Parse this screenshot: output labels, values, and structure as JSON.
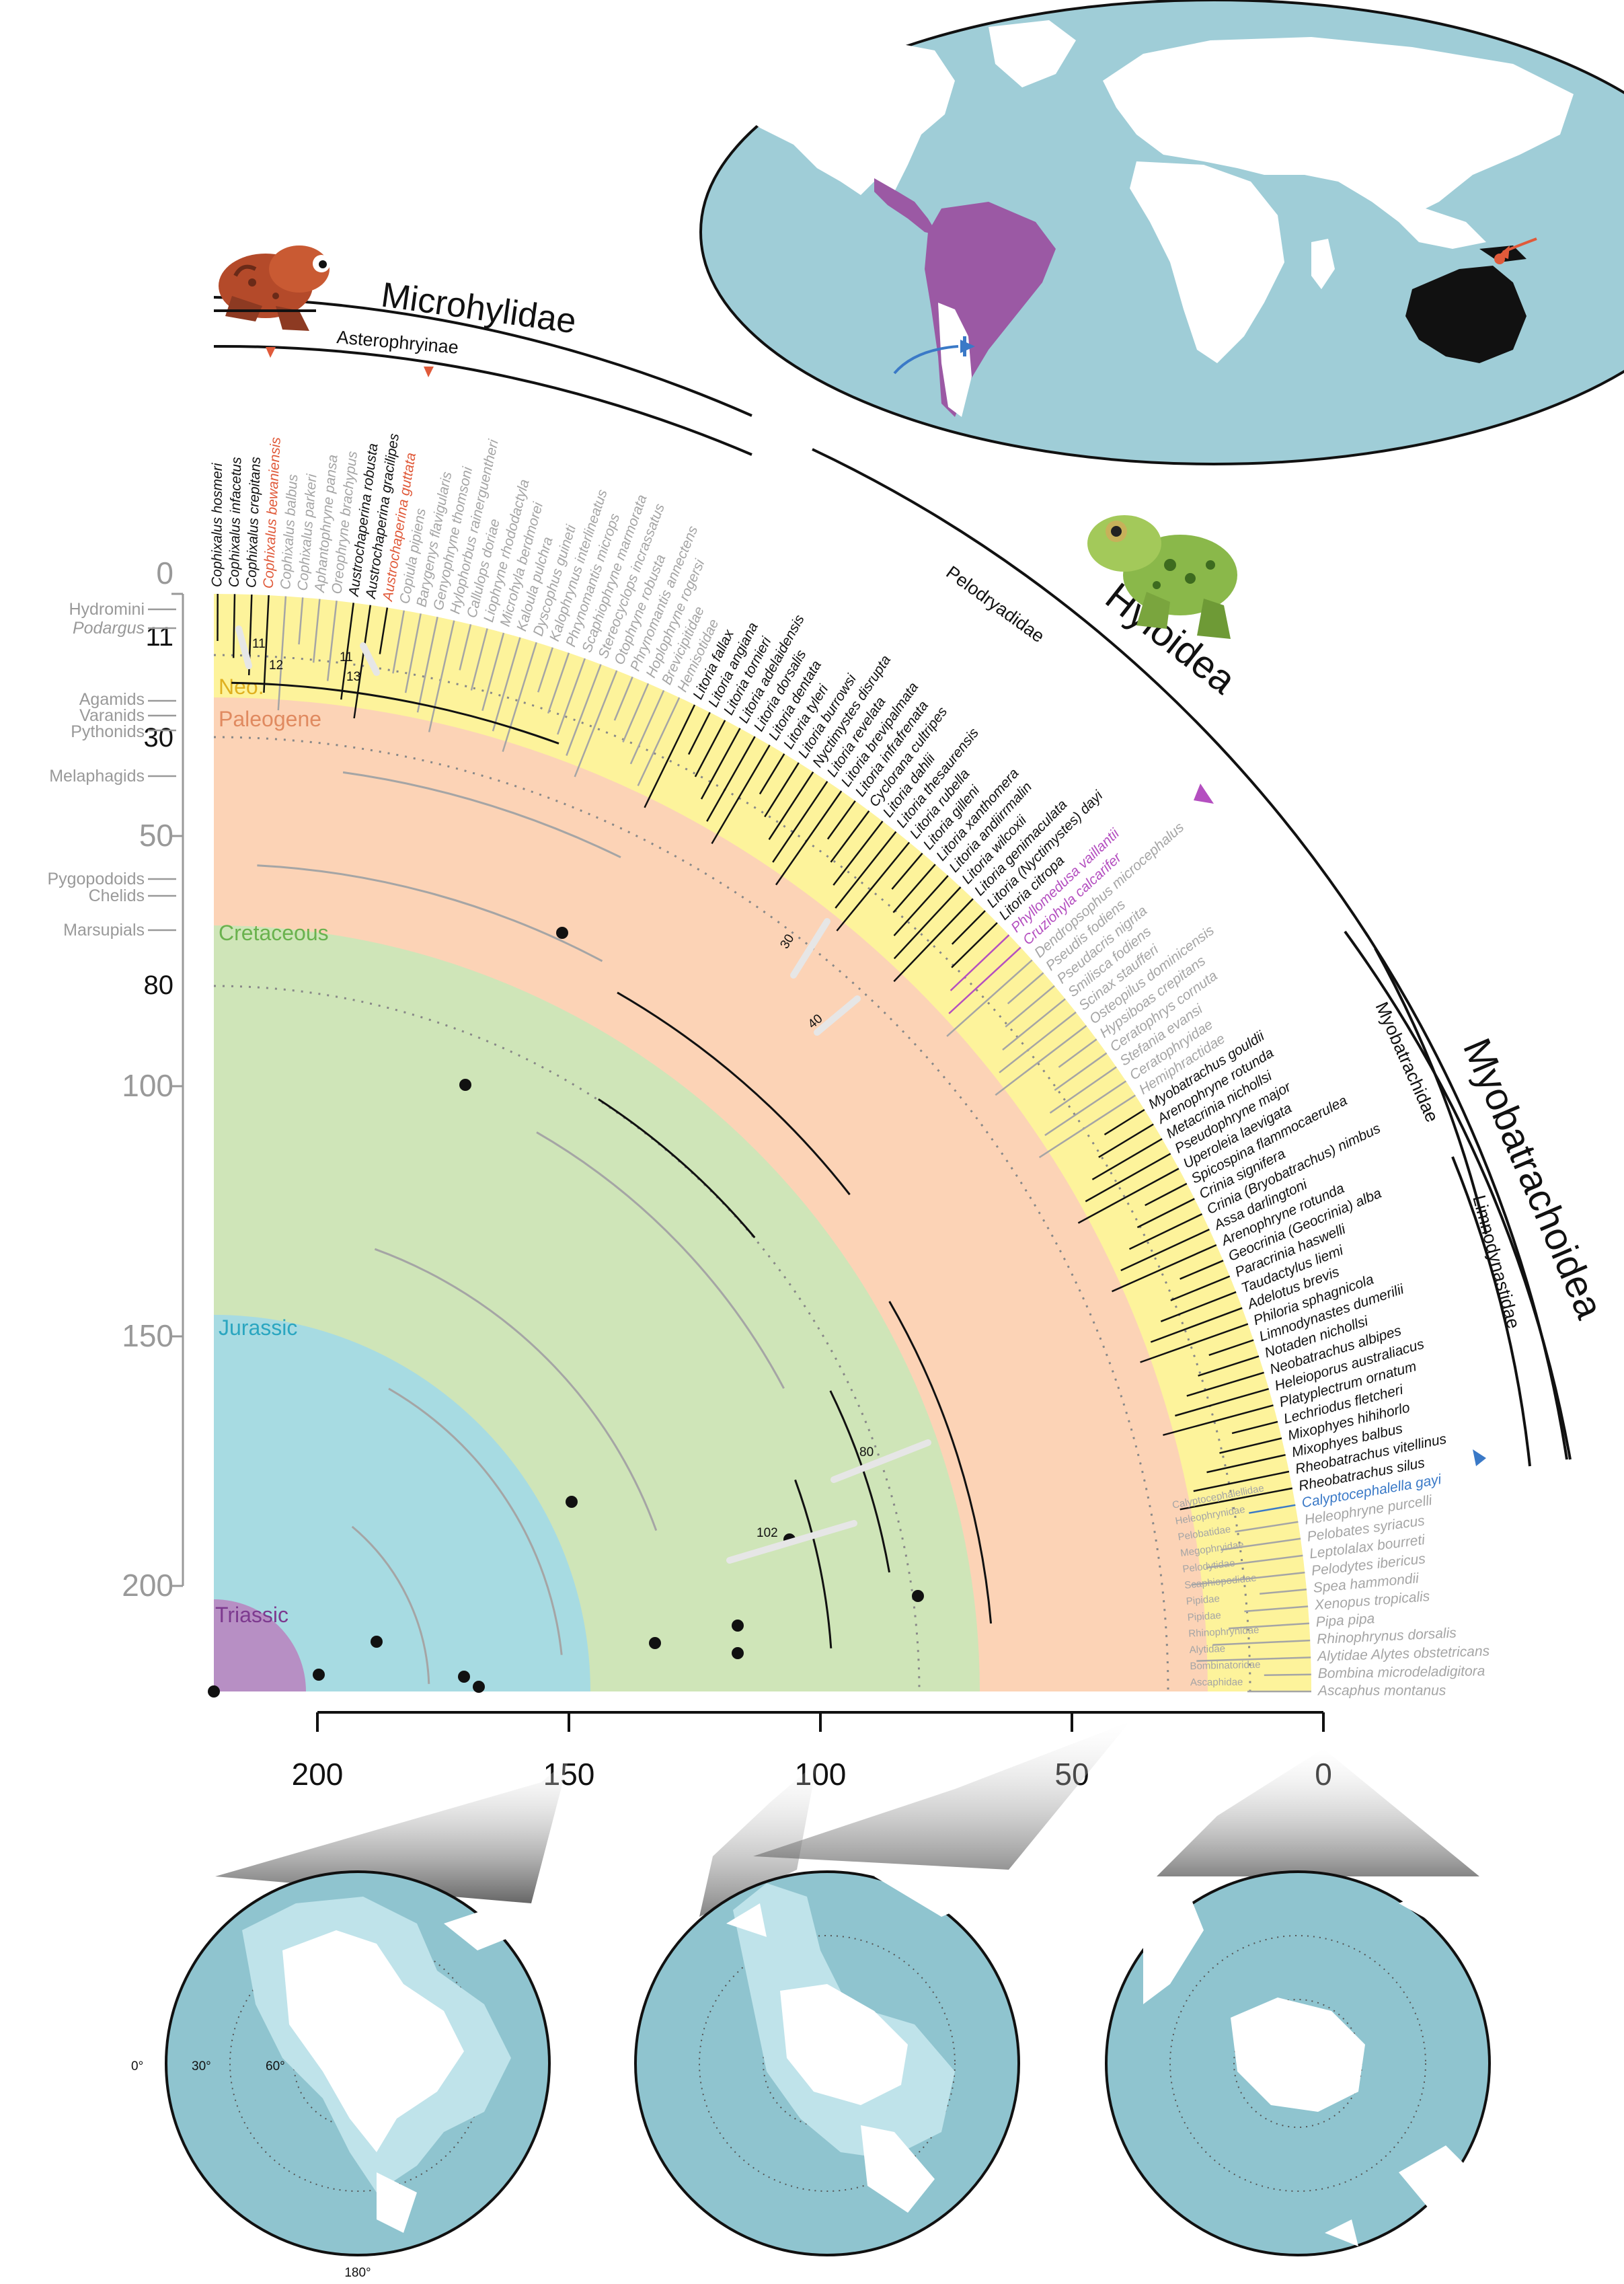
{
  "families": {
    "microhylidae": "Microhylidae",
    "asterophryinae": "Asterophryinae",
    "hyloidea": "Hyloidea",
    "pelodryadidae": "Pelodryadidae",
    "myobatrachoidea": "Myobatrachoidea",
    "myobatrachidae": "Myobatrachidae",
    "limnodynastidae": "Limnodynastidae"
  },
  "periods": {
    "neogene": "Neo.",
    "paleogene": "Paleogene",
    "cretaceous": "Cretaceous",
    "jurassic": "Jurassic",
    "triassic": "Triassic"
  },
  "radial_axis": {
    "ticks": [
      {
        "label": "0",
        "value": 0
      },
      {
        "label": "11",
        "value": 11
      },
      {
        "label": "30",
        "value": 30
      },
      {
        "label": "50",
        "value": 50
      },
      {
        "label": "80",
        "value": 80
      },
      {
        "label": "100",
        "value": 100
      },
      {
        "label": "150",
        "value": 150
      },
      {
        "label": "200",
        "value": 200
      }
    ],
    "events": [
      {
        "label": "Hydromini"
      },
      {
        "label": "Podargus"
      },
      {
        "label": "Agamids"
      },
      {
        "label": "Varanids"
      },
      {
        "label": "Pythonids"
      },
      {
        "label": "Melaphagids"
      },
      {
        "label": "Pygopodoids"
      },
      {
        "label": "Chelids"
      },
      {
        "label": "Marsupials"
      }
    ]
  },
  "bottom_axis": {
    "ticks": [
      "200",
      "150",
      "100",
      "50",
      "0"
    ]
  },
  "node_labels": {
    "n11a": "11",
    "n12": "12",
    "n11b": "11",
    "n13": "13",
    "n30": "30",
    "n40": "40",
    "n80": "80",
    "n102": "102"
  },
  "globe_labels": {
    "lon0": "0°",
    "lat30": "30°",
    "lat60": "60°",
    "lon180": "180°"
  },
  "tips": [
    {
      "name": "Cophixalus hosmeri",
      "style": "B"
    },
    {
      "name": "Cophixalus infacetus",
      "style": "B"
    },
    {
      "name": "Cophixalus crepitans",
      "style": "B"
    },
    {
      "name": "Cophixalus bewaniensis",
      "style": "R"
    },
    {
      "name": "Cophixalus balbus",
      "style": "G"
    },
    {
      "name": "Cophixalus parkeri",
      "style": "G"
    },
    {
      "name": "Aphantophryne pansa",
      "style": "G"
    },
    {
      "name": "Oreophryne brachypus",
      "style": "G"
    },
    {
      "name": "Austrochaperina robusta",
      "style": "B"
    },
    {
      "name": "Austrochaperina gracilipes",
      "style": "B"
    },
    {
      "name": "Austrochaperina guttata",
      "style": "R"
    },
    {
      "name": "Copiula pipiens",
      "style": "G"
    },
    {
      "name": "Barygenys flavigularis",
      "style": "G"
    },
    {
      "name": "Genyophryne thomsoni",
      "style": "G"
    },
    {
      "name": "Hylophorbus rainerguentheri",
      "style": "G"
    },
    {
      "name": "Callulops doriae",
      "style": "G"
    },
    {
      "name": "Liophryne rhododactyla",
      "style": "G"
    },
    {
      "name": "Microhyla berdmorei",
      "style": "G"
    },
    {
      "name": "Kaloula pulchra",
      "style": "G"
    },
    {
      "name": "Dyscophus guineti",
      "style": "G"
    },
    {
      "name": "Kalophrynus interlineatus",
      "style": "G"
    },
    {
      "name": "Phrynomantis microps",
      "style": "G"
    },
    {
      "name": "Scaphiophryne marmorata",
      "style": "G"
    },
    {
      "name": "Stereocyclops incrassatus",
      "style": "G"
    },
    {
      "name": "Otophryne robusta",
      "style": "G"
    },
    {
      "name": "Phrynomantis annectens",
      "style": "G"
    },
    {
      "name": "Hoplophryne rogersi",
      "style": "G"
    },
    {
      "name": "Brevicipitidae",
      "style": "G"
    },
    {
      "name": "Hemisotidae",
      "style": "G"
    },
    {
      "name": "Litoria fallax",
      "style": "B"
    },
    {
      "name": "Litoria angiana",
      "style": "B"
    },
    {
      "name": "Litoria tornieri",
      "style": "B"
    },
    {
      "name": "Litoria adelaidensis",
      "style": "B"
    },
    {
      "name": "Litoria dorsalis",
      "style": "B"
    },
    {
      "name": "Litoria dentata",
      "style": "B"
    },
    {
      "name": "Litoria tyleri",
      "style": "B"
    },
    {
      "name": "Litoria burrowsi",
      "style": "B"
    },
    {
      "name": "Nyctimystes disrupta",
      "style": "B"
    },
    {
      "name": "Litoria revelata",
      "style": "B"
    },
    {
      "name": "Litoria brevipalmata",
      "style": "B"
    },
    {
      "name": "Litoria infrafrenata",
      "style": "B"
    },
    {
      "name": "Cyclorana cultripes",
      "style": "B"
    },
    {
      "name": "Litoria dahlii",
      "style": "B"
    },
    {
      "name": "Litoria thesaurensis",
      "style": "B"
    },
    {
      "name": "Litoria rubella",
      "style": "B"
    },
    {
      "name": "Litoria gilleni",
      "style": "B"
    },
    {
      "name": "Litoria xanthomera",
      "style": "B"
    },
    {
      "name": "Litoria andiirrmalin",
      "style": "B"
    },
    {
      "name": "Litoria wilcoxii",
      "style": "B"
    },
    {
      "name": "Litoria genimaculata",
      "style": "B"
    },
    {
      "name": "Litoria (Nyctimystes) dayi",
      "style": "B"
    },
    {
      "name": "Litoria citropa",
      "style": "B"
    },
    {
      "name": "Phyllomedusa vaillantii",
      "style": "P"
    },
    {
      "name": "Cruziohyla calcarifer",
      "style": "P"
    },
    {
      "name": "Dendropsophus microcephalus",
      "style": "G"
    },
    {
      "name": "Pseudis fodiens",
      "style": "G"
    },
    {
      "name": "Pseudacris nigrita",
      "style": "G"
    },
    {
      "name": "Smilisca fodiens",
      "style": "G"
    },
    {
      "name": "Scinax staufferi",
      "style": "G"
    },
    {
      "name": "Osteopilus dominicensis",
      "style": "G"
    },
    {
      "name": "Hypsiboas crepitans",
      "style": "G"
    },
    {
      "name": "Ceratophrys cornuta",
      "style": "G"
    },
    {
      "name": "Stefania evansi",
      "style": "G"
    },
    {
      "name": "Ceratophryidae",
      "style": "G"
    },
    {
      "name": "Hemiphractidae",
      "style": "G"
    },
    {
      "name": "Myobatrachus gouldii",
      "style": "B"
    },
    {
      "name": "Arenophryne rotunda",
      "style": "B"
    },
    {
      "name": "Metacrinia nichollsi",
      "style": "B"
    },
    {
      "name": "Pseudophryne major",
      "style": "B"
    },
    {
      "name": "Uperoleia laevigata",
      "style": "B"
    },
    {
      "name": "Spicospina flammocaerulea",
      "style": "B"
    },
    {
      "name": "Crinia signifera",
      "style": "B"
    },
    {
      "name": "Crinia (Bryobatrachus) nimbus",
      "style": "B"
    },
    {
      "name": "Assa darlingtoni",
      "style": "B"
    },
    {
      "name": "Arenophryne rotunda",
      "style": "B"
    },
    {
      "name": "Geocrinia (Geocrinia) alba",
      "style": "B"
    },
    {
      "name": "Paracrinia haswelli",
      "style": "B"
    },
    {
      "name": "Taudactylus liemi",
      "style": "B"
    },
    {
      "name": "Adelotus brevis",
      "style": "B"
    },
    {
      "name": "Philoria sphagnicola",
      "style": "B"
    },
    {
      "name": "Limnodynastes dumerilii",
      "style": "B"
    },
    {
      "name": "Notaden nichollsi",
      "style": "B"
    },
    {
      "name": "Neobatrachus albipes",
      "style": "B"
    },
    {
      "name": "Heleioporus australiacus",
      "style": "B"
    },
    {
      "name": "Platyplectrum ornatum",
      "style": "B"
    },
    {
      "name": "Lechriodus fletcheri",
      "style": "B"
    },
    {
      "name": "Mixophyes hihihorlo",
      "style": "B"
    },
    {
      "name": "Mixophyes balbus",
      "style": "B"
    },
    {
      "name": "Rheobatrachus vitellinus",
      "style": "B"
    },
    {
      "name": "Rheobatrachus silus",
      "style": "B"
    },
    {
      "name": "Calyptocephalella gayi",
      "style": "Bl"
    },
    {
      "name": "Heleophryne purcelli",
      "style": "G"
    },
    {
      "name": "Pelobates syriacus",
      "style": "G"
    },
    {
      "name": "Leptolalax bourreti",
      "style": "G"
    },
    {
      "name": "Pelodytes ibericus",
      "style": "G"
    },
    {
      "name": "Spea hammondii",
      "style": "G"
    },
    {
      "name": "Xenopus tropicalis",
      "style": "G"
    },
    {
      "name": "Pipa pipa",
      "style": "G"
    },
    {
      "name": "Rhinophrynus dorsalis",
      "style": "G"
    },
    {
      "name": "Alytidae Alytes obstetricans",
      "style": "G"
    },
    {
      "name": "Bombina microdeladigitora",
      "style": "G"
    },
    {
      "name": "Ascaphus montanus",
      "style": "G"
    }
  ],
  "family_labels": [
    "Calyptocephalellidae",
    "Heleophrynidae",
    "Pelobatidae",
    "Megophryidae",
    "Pelodytidae",
    "Scaphiopodidae",
    "Pipidae",
    "Pipidae",
    "Rhinophrynidae",
    "Alytidae",
    "Bombinatoridae",
    "Ascaphidae"
  ],
  "colors": {
    "neogene": "#fdf39b",
    "paleogene": "#fcd3b6",
    "cretaceous": "#cfe5b8",
    "jurassic": "#a7dbe2",
    "triassic": "#b78fc4",
    "ocean": "#9fcdd7",
    "australia_clade": "#111111",
    "other_clade": "#a5a5a5",
    "highlight_red": "#e05a3a",
    "highlight_purple": "#b44fc0",
    "highlight_blue": "#3a79c7"
  }
}
